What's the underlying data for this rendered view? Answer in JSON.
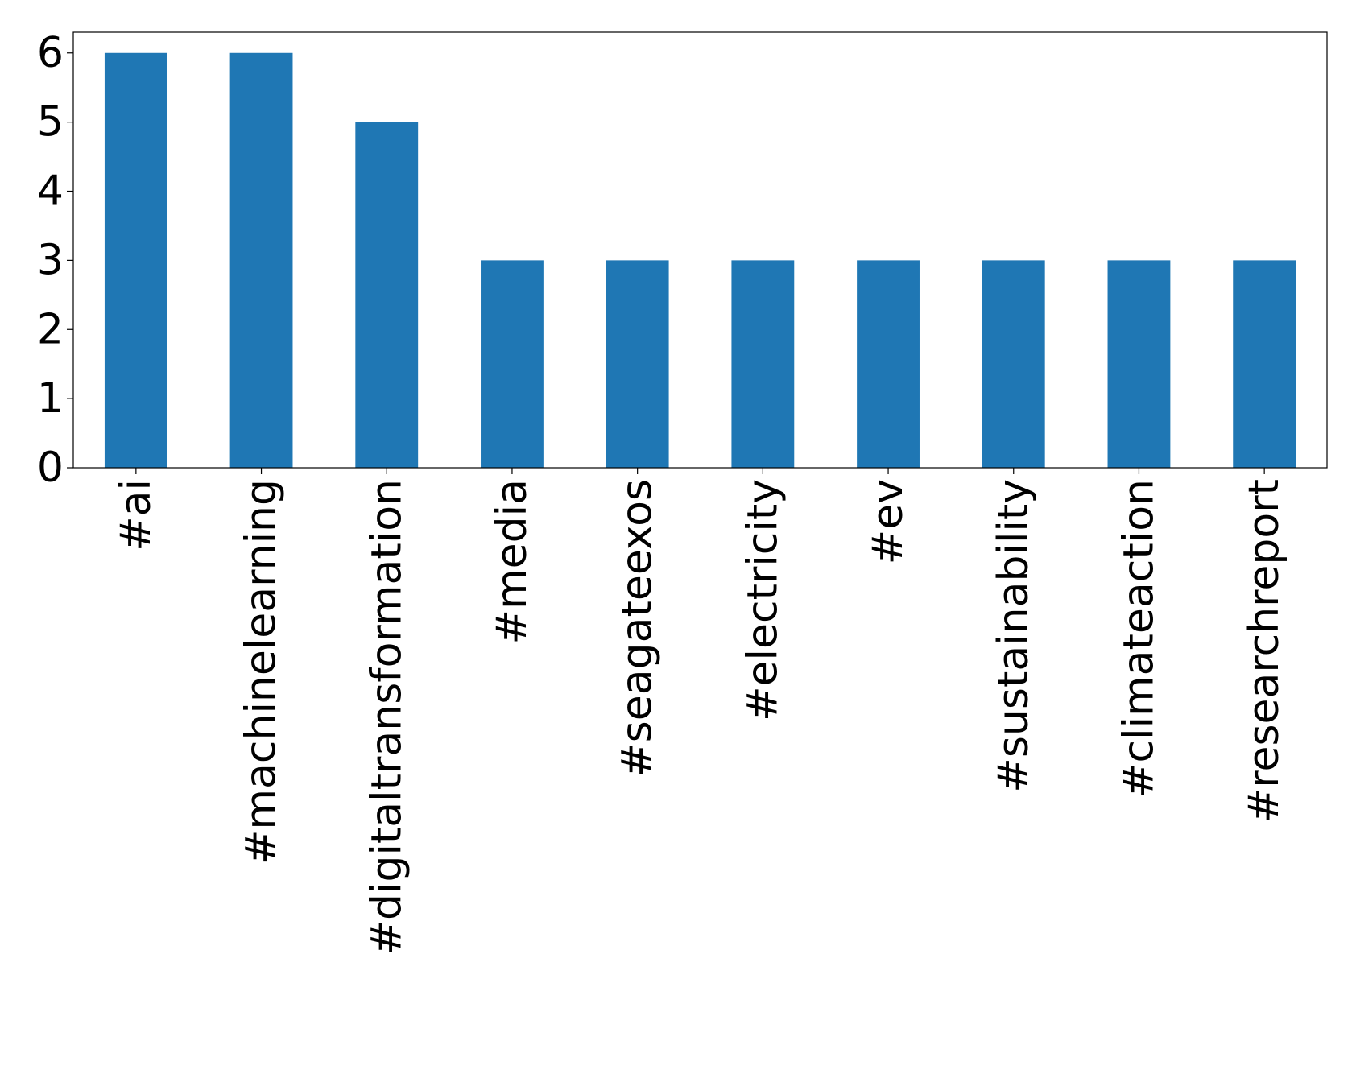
{
  "chart_data": {
    "type": "bar",
    "categories": [
      "#ai",
      "#machinelearning",
      "#digitaltransformation",
      "#media",
      "#seagateexos",
      "#electricity",
      "#ev",
      "#sustainability",
      "#climateaction",
      "#researchreport"
    ],
    "values": [
      6,
      6,
      5,
      3,
      3,
      3,
      3,
      3,
      3,
      3
    ],
    "color": "#1f77b4",
    "ylim": [
      0,
      6.3
    ],
    "yticks": [
      0,
      1,
      2,
      3,
      4,
      5,
      6
    ],
    "grid": false
  }
}
